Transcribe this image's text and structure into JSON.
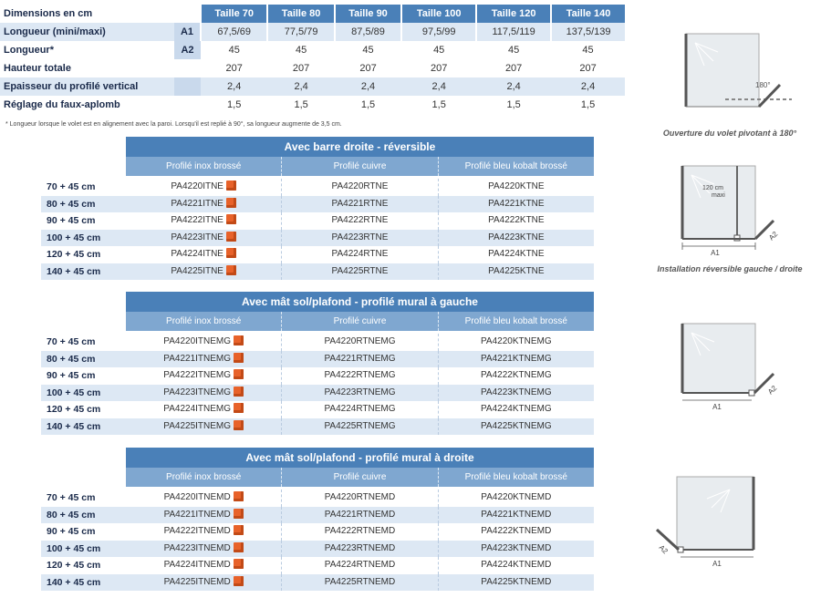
{
  "dimensions": {
    "header_label": "Dimensions en cm",
    "sizes": [
      "Taille 70",
      "Taille 80",
      "Taille 90",
      "Taille 100",
      "Taille 120",
      "Taille 140"
    ],
    "rows": [
      {
        "label": "Longueur (mini/maxi)",
        "code": "A1",
        "values": [
          "67,5/69",
          "77,5/79",
          "87,5/89",
          "97,5/99",
          "117,5/119",
          "137,5/139"
        ]
      },
      {
        "label": "Longueur*",
        "code": "A2",
        "values": [
          "45",
          "45",
          "45",
          "45",
          "45",
          "45"
        ]
      },
      {
        "label": "Hauteur totale",
        "code": "",
        "values": [
          "207",
          "207",
          "207",
          "207",
          "207",
          "207"
        ]
      },
      {
        "label": "Epaisseur du profilé vertical",
        "code": "",
        "values": [
          "2,4",
          "2,4",
          "2,4",
          "2,4",
          "2,4",
          "2,4"
        ]
      },
      {
        "label": "Réglage du faux-aplomb",
        "code": "",
        "values": [
          "1,5",
          "1,5",
          "1,5",
          "1,5",
          "1,5",
          "1,5"
        ]
      }
    ],
    "footnote": "* Longueur lorsque le volet est en alignement avec la paroi. Lorsqu'il est replié à 90°, sa longueur augmente de 3,5 cm."
  },
  "tables": [
    {
      "title": "Avec barre droite - réversible",
      "columns": [
        "Profilé inox brossé",
        "Profilé cuivre",
        "Profilé bleu kobalt brossé"
      ],
      "rows": [
        {
          "size": "70 + 45 cm",
          "refs": [
            "PA4220ITNE",
            "PA4220RTNE",
            "PA4220KTNE"
          ]
        },
        {
          "size": "80 + 45 cm",
          "refs": [
            "PA4221ITNE",
            "PA4221RTNE",
            "PA4221KTNE"
          ]
        },
        {
          "size": "90 + 45 cm",
          "refs": [
            "PA4222ITNE",
            "PA4222RTNE",
            "PA4222KTNE"
          ]
        },
        {
          "size": "100 + 45 cm",
          "refs": [
            "PA4223ITNE",
            "PA4223RTNE",
            "PA4223KTNE"
          ]
        },
        {
          "size": "120 + 45 cm",
          "refs": [
            "PA4224ITNE",
            "PA4224RTNE",
            "PA4224KTNE"
          ]
        },
        {
          "size": "140 + 45 cm",
          "refs": [
            "PA4225ITNE",
            "PA4225RTNE",
            "PA4225KTNE"
          ]
        }
      ]
    },
    {
      "title": "Avec mât sol/plafond - profilé mural à gauche",
      "columns": [
        "Profilé inox brossé",
        "Profilé cuivre",
        "Profilé bleu kobalt brossé"
      ],
      "rows": [
        {
          "size": "70 + 45 cm",
          "refs": [
            "PA4220ITNEMG",
            "PA4220RTNEMG",
            "PA4220KTNEMG"
          ]
        },
        {
          "size": "80 + 45 cm",
          "refs": [
            "PA4221ITNEMG",
            "PA4221RTNEMG",
            "PA4221KTNEMG"
          ]
        },
        {
          "size": "90 + 45 cm",
          "refs": [
            "PA4222ITNEMG",
            "PA4222RTNEMG",
            "PA4222KTNEMG"
          ]
        },
        {
          "size": "100 + 45 cm",
          "refs": [
            "PA4223ITNEMG",
            "PA4223RTNEMG",
            "PA4223KTNEMG"
          ]
        },
        {
          "size": "120 + 45 cm",
          "refs": [
            "PA4224ITNEMG",
            "PA4224RTNEMG",
            "PA4224KTNEMG"
          ]
        },
        {
          "size": "140 + 45 cm",
          "refs": [
            "PA4225ITNEMG",
            "PA4225RTNEMG",
            "PA4225KTNEMG"
          ]
        }
      ]
    },
    {
      "title": "Avec mât sol/plafond - profilé mural à droite",
      "columns": [
        "Profilé inox brossé",
        "Profilé cuivre",
        "Profilé bleu kobalt brossé"
      ],
      "rows": [
        {
          "size": "70 + 45 cm",
          "refs": [
            "PA4220ITNEMD",
            "PA4220RTNEMD",
            "PA4220KTNEMD"
          ]
        },
        {
          "size": "80 + 45 cm",
          "refs": [
            "PA4221ITNEMD",
            "PA4221RTNEMD",
            "PA4221KTNEMD"
          ]
        },
        {
          "size": "90 + 45 cm",
          "refs": [
            "PA4222ITNEMD",
            "PA4222RTNEMD",
            "PA4222KTNEMD"
          ]
        },
        {
          "size": "100 + 45 cm",
          "refs": [
            "PA4223ITNEMD",
            "PA4223RTNEMD",
            "PA4223KTNEMD"
          ]
        },
        {
          "size": "120 + 45 cm",
          "refs": [
            "PA4224ITNEMD",
            "PA4224RTNEMD",
            "PA4224KTNEMD"
          ]
        },
        {
          "size": "140 + 45 cm",
          "refs": [
            "PA4225ITNEMD",
            "PA4225RTNEMD",
            "PA4225KTNEMD"
          ]
        }
      ]
    }
  ],
  "diagrams": {
    "d1": {
      "angle": "180°",
      "caption": "Ouverture du volet pivotant à 180°"
    },
    "d2": {
      "note1": "120 cm",
      "note2": "maxi",
      "a1": "A1",
      "a2": "A2",
      "caption": "Installation réversible gauche / droite"
    },
    "d3": {
      "a1": "A1",
      "a2": "A2"
    },
    "d4": {
      "a1": "A1",
      "a2": "A2"
    }
  },
  "icons": {
    "box": "package-box-icon",
    "box_color": "#e8622a"
  },
  "colors": {
    "header_blue": "#4a80b8",
    "sub_blue": "#7fa7d0",
    "row_shade": "#dde8f4"
  }
}
